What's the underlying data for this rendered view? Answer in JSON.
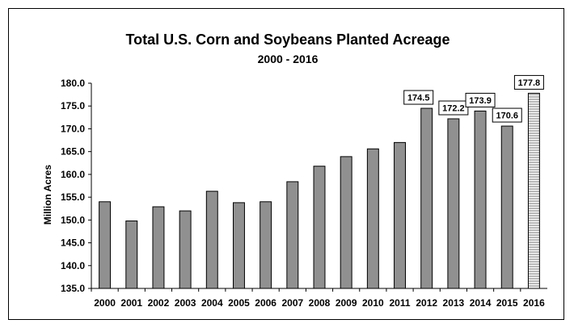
{
  "chart_data": {
    "type": "bar",
    "title": "Total U.S. Corn and Soybeans Planted Acreage",
    "subtitle": "2000 - 2016",
    "xlabel": "",
    "ylabel": "Million Acres",
    "ylim": [
      135.0,
      180.0
    ],
    "y_ticks": [
      "135.0",
      "140.0",
      "145.0",
      "150.0",
      "155.0",
      "160.0",
      "165.0",
      "170.0",
      "175.0",
      "180.0"
    ],
    "grid": false,
    "legend": "none",
    "categories": [
      "2000",
      "2001",
      "2002",
      "2003",
      "2004",
      "2005",
      "2006",
      "2007",
      "2008",
      "2009",
      "2010",
      "2011",
      "2012",
      "2013",
      "2014",
      "2015",
      "2016"
    ],
    "values": [
      154.0,
      149.8,
      152.9,
      152.0,
      156.3,
      153.8,
      154.0,
      158.4,
      161.8,
      163.9,
      165.6,
      167.0,
      174.5,
      172.2,
      173.9,
      170.6,
      177.8
    ],
    "data_labels": [
      {
        "category": "2012",
        "text": "174.5"
      },
      {
        "category": "2013",
        "text": "172.2"
      },
      {
        "category": "2014",
        "text": "173.9"
      },
      {
        "category": "2015",
        "text": "170.6"
      },
      {
        "category": "2016",
        "text": "177.8"
      }
    ],
    "projected_category": "2016",
    "colors": {
      "bar_fill": "#909090",
      "bar_stroke": "#000000",
      "projected_stripe": "#707070",
      "axis": "#000000",
      "text": "#000000"
    }
  }
}
